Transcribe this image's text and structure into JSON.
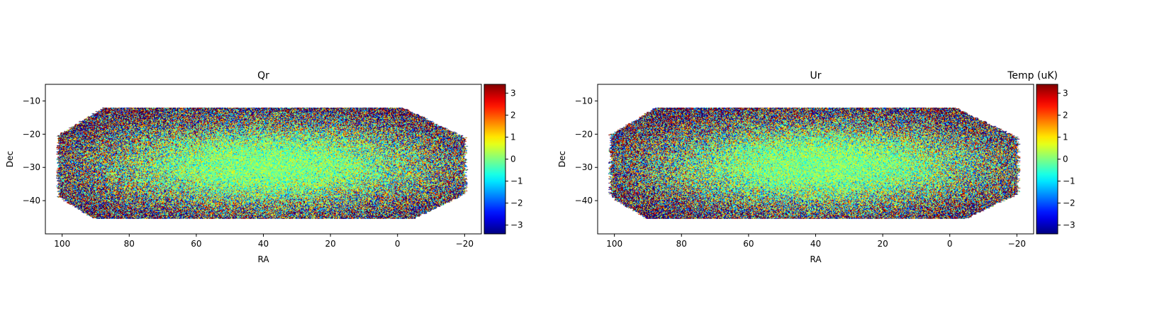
{
  "chart_data": [
    {
      "type": "heatmap",
      "title": "Qr",
      "xlabel": "RA",
      "ylabel": "Dec",
      "xlim": [
        105,
        -25
      ],
      "ylim": [
        -50,
        -5
      ],
      "xticks": [
        100,
        80,
        60,
        40,
        20,
        0,
        -20
      ],
      "xtick_labels": [
        "100",
        "80",
        "60",
        "40",
        "20",
        "0",
        "−20"
      ],
      "yticks": [
        -10,
        -20,
        -30,
        -40
      ],
      "ytick_labels": [
        "−10",
        "−20",
        "−30",
        "−40"
      ],
      "footprint": {
        "ra_range": [
          102,
          -21
        ],
        "dec_range": [
          -45.5,
          -12
        ]
      },
      "colorbar": {
        "colormap": "jet",
        "vmin": -3.4,
        "vmax": 3.4,
        "ticks": [
          3,
          2,
          1,
          0,
          -1,
          -2,
          -3
        ],
        "tick_labels": [
          "3",
          "2",
          "1",
          "0",
          "−1",
          "−2",
          "−3"
        ],
        "label": ""
      },
      "seed": 7
    },
    {
      "type": "heatmap",
      "title": "Ur",
      "xlabel": "RA",
      "ylabel": "Dec",
      "xlim": [
        105,
        -25
      ],
      "ylim": [
        -50,
        -5
      ],
      "xticks": [
        100,
        80,
        60,
        40,
        20,
        0,
        -20
      ],
      "xtick_labels": [
        "100",
        "80",
        "60",
        "40",
        "20",
        "0",
        "−20"
      ],
      "yticks": [
        -10,
        -20,
        -30,
        -40
      ],
      "ytick_labels": [
        "−10",
        "−20",
        "−30",
        "−40"
      ],
      "footprint": {
        "ra_range": [
          102,
          -21
        ],
        "dec_range": [
          -45.5,
          -12
        ]
      },
      "colorbar": {
        "colormap": "jet",
        "vmin": -3.4,
        "vmax": 3.4,
        "ticks": [
          3,
          2,
          1,
          0,
          -1,
          -2,
          -3
        ],
        "tick_labels": [
          "3",
          "2",
          "1",
          "0",
          "−1",
          "−2",
          "−3"
        ],
        "label": "Temp  (uK)"
      },
      "seed": 19
    }
  ]
}
